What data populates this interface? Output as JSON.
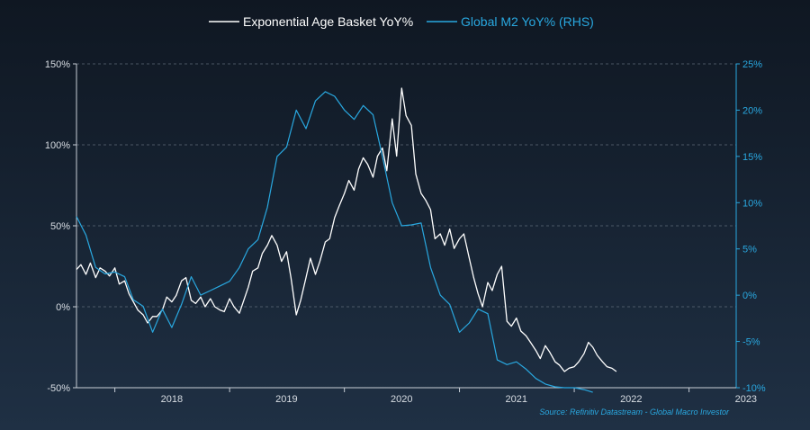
{
  "chart_data": {
    "type": "line",
    "title": "",
    "legend": {
      "placement": "top-center",
      "entries": [
        {
          "name": "Exponential Age Basket YoY%",
          "color": "#ffffff"
        },
        {
          "name": "Global M2 YoY% (RHS)",
          "color": "#29a8e0"
        }
      ]
    },
    "x_axis": {
      "type": "date",
      "ticks": [
        "2018",
        "2019",
        "2020",
        "2021",
        "2022",
        "2023"
      ],
      "range": [
        "2017-09-01",
        "2023-05-31"
      ]
    },
    "y_left": {
      "ticks": [
        "150%",
        "100%",
        "50%",
        "0%",
        "-50%"
      ],
      "tick_values": [
        150,
        100,
        50,
        0,
        -50
      ],
      "range": [
        -50,
        150
      ]
    },
    "y_right": {
      "ticks": [
        "25%",
        "20%",
        "15%",
        "10%",
        "5%",
        "0%",
        "-5%",
        "-10%"
      ],
      "tick_values": [
        25,
        20,
        15,
        10,
        5,
        0,
        -5,
        -10
      ],
      "range": [
        -10,
        25
      ],
      "color": "#29a8e0"
    },
    "grid": {
      "horizontal": true,
      "vertical": false,
      "style": "dashed"
    },
    "series": [
      {
        "name": "Exponential Age Basket YoY%",
        "axis": "left",
        "color": "#ffffff",
        "x": [
          "2017-09-01",
          "2017-09-15",
          "2017-10-01",
          "2017-10-15",
          "2017-11-01",
          "2017-11-15",
          "2017-12-01",
          "2017-12-15",
          "2018-01-01",
          "2018-01-15",
          "2018-02-01",
          "2018-02-15",
          "2018-03-01",
          "2018-03-15",
          "2018-04-01",
          "2018-04-15",
          "2018-05-01",
          "2018-05-15",
          "2018-06-01",
          "2018-06-15",
          "2018-07-01",
          "2018-07-15",
          "2018-08-01",
          "2018-08-15",
          "2018-09-01",
          "2018-09-15",
          "2018-10-01",
          "2018-10-15",
          "2018-11-01",
          "2018-11-15",
          "2018-12-01",
          "2018-12-15",
          "2019-01-01",
          "2019-01-15",
          "2019-02-01",
          "2019-02-15",
          "2019-03-01",
          "2019-03-15",
          "2019-04-01",
          "2019-04-15",
          "2019-05-01",
          "2019-05-15",
          "2019-06-01",
          "2019-06-15",
          "2019-07-01",
          "2019-07-15",
          "2019-08-01",
          "2019-08-15",
          "2019-09-01",
          "2019-09-15",
          "2019-10-01",
          "2019-10-15",
          "2019-11-01",
          "2019-11-15",
          "2019-12-01",
          "2019-12-15",
          "2020-01-01",
          "2020-01-15",
          "2020-02-01",
          "2020-02-15",
          "2020-03-01",
          "2020-03-15",
          "2020-04-01",
          "2020-04-15",
          "2020-05-01",
          "2020-05-15",
          "2020-06-01",
          "2020-06-15",
          "2020-07-01",
          "2020-07-15",
          "2020-08-01",
          "2020-08-15",
          "2020-09-01",
          "2020-09-15",
          "2020-10-01",
          "2020-10-15",
          "2020-11-01",
          "2020-11-15",
          "2020-12-01",
          "2020-12-15",
          "2021-01-01",
          "2021-01-15",
          "2021-02-01",
          "2021-02-15",
          "2021-03-01",
          "2021-03-15",
          "2021-04-01",
          "2021-04-15",
          "2021-05-01",
          "2021-05-15",
          "2021-06-01",
          "2021-06-15",
          "2021-07-01",
          "2021-07-15",
          "2021-08-01",
          "2021-08-15",
          "2021-09-01",
          "2021-09-15",
          "2021-10-01",
          "2021-10-15",
          "2021-11-01",
          "2021-11-15",
          "2021-12-01",
          "2021-12-15",
          "2022-01-01",
          "2022-01-15",
          "2022-02-01",
          "2022-02-15",
          "2022-03-01",
          "2022-03-15",
          "2022-04-01",
          "2022-04-15",
          "2022-05-01",
          "2022-05-15"
        ],
        "values": [
          23,
          26,
          20,
          27,
          18,
          24,
          22,
          19,
          24,
          14,
          16,
          8,
          3,
          -2,
          -5,
          -10,
          -6,
          -6,
          -2,
          6,
          3,
          7,
          16,
          18,
          4,
          2,
          6,
          0,
          5,
          0,
          -2,
          -3,
          5,
          0,
          -4,
          4,
          12,
          22,
          24,
          33,
          38,
          44,
          38,
          28,
          34,
          18,
          -5,
          4,
          18,
          30,
          20,
          28,
          40,
          42,
          55,
          62,
          70,
          78,
          72,
          85,
          92,
          88,
          80,
          93,
          98,
          84,
          116,
          93,
          135,
          118,
          112,
          82,
          70,
          66,
          60,
          42,
          45,
          38,
          48,
          36,
          42,
          45,
          30,
          18,
          8,
          0,
          15,
          10,
          20,
          25,
          -9,
          -12,
          -7,
          -15,
          -18,
          -22,
          -27,
          -32,
          -24,
          -28,
          -34,
          -36,
          -40,
          -38,
          -37,
          -34,
          -29,
          -22,
          -25,
          -30,
          -34,
          -37,
          -38,
          -40
        ]
      },
      {
        "name": "Global M2 YoY% (RHS)",
        "axis": "right",
        "color": "#29a8e0",
        "x": [
          "2017-09-01",
          "2017-10-01",
          "2017-11-01",
          "2017-12-01",
          "2018-01-01",
          "2018-02-01",
          "2018-03-01",
          "2018-04-01",
          "2018-05-01",
          "2018-06-01",
          "2018-07-01",
          "2018-08-01",
          "2018-09-01",
          "2018-10-01",
          "2018-11-01",
          "2018-12-01",
          "2019-01-01",
          "2019-02-01",
          "2019-03-01",
          "2019-04-01",
          "2019-05-01",
          "2019-06-01",
          "2019-07-01",
          "2019-08-01",
          "2019-09-01",
          "2019-10-01",
          "2019-11-01",
          "2019-12-01",
          "2020-01-01",
          "2020-02-01",
          "2020-03-01",
          "2020-04-01",
          "2020-05-01",
          "2020-06-01",
          "2020-07-01",
          "2020-08-01",
          "2020-09-01",
          "2020-10-01",
          "2020-11-01",
          "2020-12-01",
          "2021-01-01",
          "2021-02-01",
          "2021-03-01",
          "2021-04-01",
          "2021-05-01",
          "2021-06-01",
          "2021-07-01",
          "2021-08-01",
          "2021-09-01",
          "2021-10-01",
          "2021-11-01",
          "2021-12-01",
          "2022-01-01",
          "2022-02-01",
          "2022-03-01"
        ],
        "values": [
          8.5,
          6.5,
          3.0,
          2.3,
          2.5,
          2.0,
          -0.5,
          -1.2,
          -4.0,
          -1.5,
          -3.5,
          -1.0,
          2.0,
          0.0,
          0.5,
          1.0,
          1.5,
          3.0,
          5.0,
          6.0,
          9.5,
          15.0,
          16.0,
          20.0,
          18.0,
          21.0,
          22.0,
          21.5,
          20.0,
          19.0,
          20.5,
          19.5,
          15.0,
          10.0,
          7.5,
          7.6,
          7.8,
          3.0,
          0.0,
          -1.0,
          -4.0,
          -3.0,
          -1.5,
          -2.0,
          -7.0,
          -7.5,
          -7.2,
          -8.0,
          -9.0,
          -9.6,
          -9.9,
          -10.0,
          -10.0,
          -10.2,
          -10.5
        ]
      }
    ],
    "source": "Source: Refinitiv Datastream - Global Macro Investor"
  }
}
